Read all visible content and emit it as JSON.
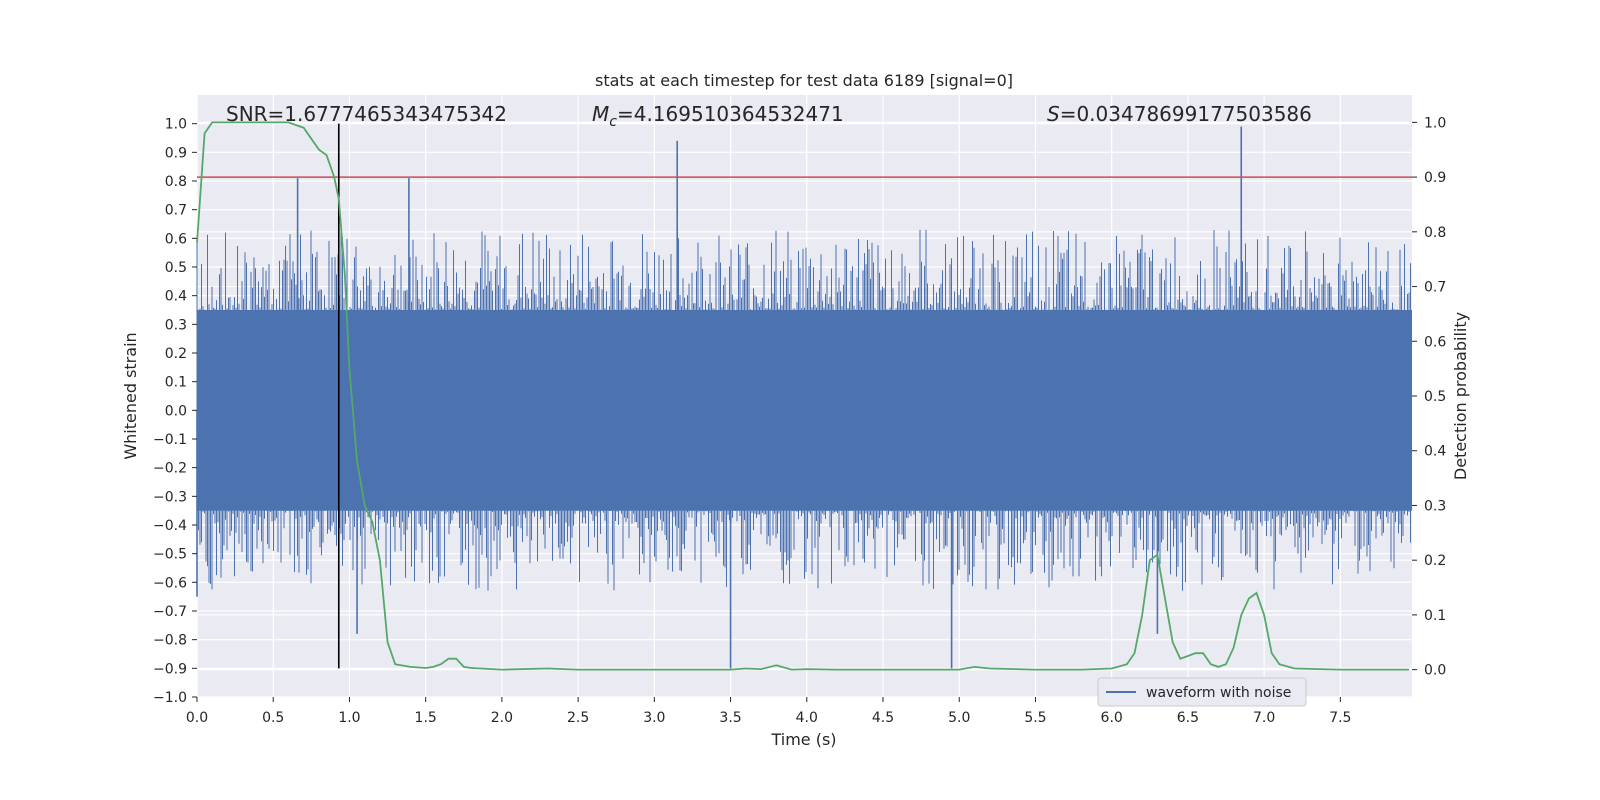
{
  "chart_data": {
    "type": "line",
    "title": "stats at each timestep for test data 6189 [signal=0]",
    "xlabel": "Time (s)",
    "ylabel_left": "Whitened strain",
    "ylabel_right": "Detection probability",
    "xlim": [
      0.0,
      7.97
    ],
    "ylim_left": [
      -1.0,
      1.1
    ],
    "ylim_right": [
      -0.05,
      1.05
    ],
    "x_ticks": [
      "0.0",
      "0.5",
      "1.0",
      "1.5",
      "2.0",
      "2.5",
      "3.0",
      "3.5",
      "4.0",
      "4.5",
      "5.0",
      "5.5",
      "6.0",
      "6.5",
      "7.0",
      "7.5"
    ],
    "x_tick_values": [
      0.0,
      0.5,
      1.0,
      1.5,
      2.0,
      2.5,
      3.0,
      3.5,
      4.0,
      4.5,
      5.0,
      5.5,
      6.0,
      6.5,
      7.0,
      7.5
    ],
    "y_left_ticks": [
      "1.0",
      "0.9",
      "0.8",
      "0.7",
      "0.6",
      "0.5",
      "0.4",
      "0.3",
      "0.2",
      "0.1",
      "0.0",
      "−0.1",
      "−0.2",
      "−0.3",
      "−0.4",
      "−0.5",
      "−0.6",
      "−0.7",
      "−0.8",
      "−0.9",
      "−1.0"
    ],
    "y_left_tick_values": [
      1.0,
      0.9,
      0.8,
      0.7,
      0.6,
      0.5,
      0.4,
      0.3,
      0.2,
      0.1,
      0.0,
      -0.1,
      -0.2,
      -0.3,
      -0.4,
      -0.5,
      -0.6,
      -0.7,
      -0.8,
      -0.9,
      -1.0
    ],
    "y_right_ticks": [
      "1.0",
      "0.9",
      "0.8",
      "0.7",
      "0.6",
      "0.5",
      "0.4",
      "0.3",
      "0.2",
      "0.1",
      "0.0"
    ],
    "y_right_tick_values": [
      1.0,
      0.9,
      0.8,
      0.7,
      0.6,
      0.5,
      0.4,
      0.3,
      0.2,
      0.1,
      0.0
    ],
    "annotations": {
      "snr": "SNR=1.6777465343475342",
      "mc_symbol": "M",
      "mc_subscript": "c",
      "mc_value": "=4.169510364532471",
      "s_symbol": "S",
      "s_value": "=0.03478699177503586"
    },
    "legend": {
      "label": "waveform with noise",
      "placement": "lower-right"
    },
    "series": [
      {
        "name": "waveform with noise",
        "axis": "left",
        "color": "#4c72b0",
        "kind": "noise",
        "core_envelope": [
          -0.35,
          0.35
        ],
        "spikes": [
          {
            "x": 0.66,
            "y": 0.81
          },
          {
            "x": 1.39,
            "y": 0.81
          },
          {
            "x": 3.15,
            "y": 0.94
          },
          {
            "x": 6.85,
            "y": 0.99
          },
          {
            "x": 3.5,
            "y": -0.9
          },
          {
            "x": 4.95,
            "y": -0.9
          },
          {
            "x": 0.0,
            "y": -0.65
          },
          {
            "x": 1.05,
            "y": -0.78
          },
          {
            "x": 6.3,
            "y": -0.78
          }
        ]
      },
      {
        "name": "",
        "axis": "right",
        "color": "#55a868",
        "kind": "line",
        "x": [
          0.0,
          0.05,
          0.1,
          0.2,
          0.3,
          0.4,
          0.5,
          0.6,
          0.7,
          0.75,
          0.8,
          0.85,
          0.9,
          0.93,
          0.97,
          1.0,
          1.05,
          1.1,
          1.15,
          1.2,
          1.25,
          1.3,
          1.4,
          1.5,
          1.55,
          1.6,
          1.65,
          1.7,
          1.75,
          1.8,
          2.0,
          2.3,
          2.5,
          3.0,
          3.5,
          3.6,
          3.7,
          3.8,
          3.9,
          4.0,
          4.2,
          4.5,
          5.0,
          5.1,
          5.2,
          5.5,
          5.8,
          6.0,
          6.1,
          6.15,
          6.2,
          6.25,
          6.3,
          6.35,
          6.4,
          6.45,
          6.5,
          6.55,
          6.6,
          6.65,
          6.7,
          6.75,
          6.8,
          6.85,
          6.9,
          6.95,
          7.0,
          7.05,
          7.1,
          7.2,
          7.5,
          7.8,
          7.95
        ],
        "y": [
          0.78,
          0.98,
          1.0,
          1.0,
          1.0,
          1.0,
          1.0,
          1.0,
          0.99,
          0.97,
          0.95,
          0.94,
          0.9,
          0.86,
          0.72,
          0.55,
          0.38,
          0.3,
          0.27,
          0.2,
          0.05,
          0.01,
          0.005,
          0.003,
          0.005,
          0.01,
          0.02,
          0.02,
          0.005,
          0.003,
          0.0,
          0.002,
          0.0,
          0.0,
          0.0,
          0.002,
          0.001,
          0.008,
          0.0,
          0.001,
          0.0,
          0.0,
          0.0,
          0.005,
          0.002,
          0.0,
          0.0,
          0.002,
          0.01,
          0.03,
          0.1,
          0.2,
          0.21,
          0.13,
          0.05,
          0.02,
          0.025,
          0.03,
          0.03,
          0.01,
          0.005,
          0.01,
          0.04,
          0.1,
          0.13,
          0.14,
          0.1,
          0.03,
          0.01,
          0.002,
          0.0,
          0.0,
          0.0
        ]
      }
    ],
    "threshold": {
      "axis": "right",
      "y": 0.9,
      "color": "#c44e52"
    },
    "marker": {
      "x": 0.93,
      "color": "#000000"
    },
    "grid": true
  }
}
